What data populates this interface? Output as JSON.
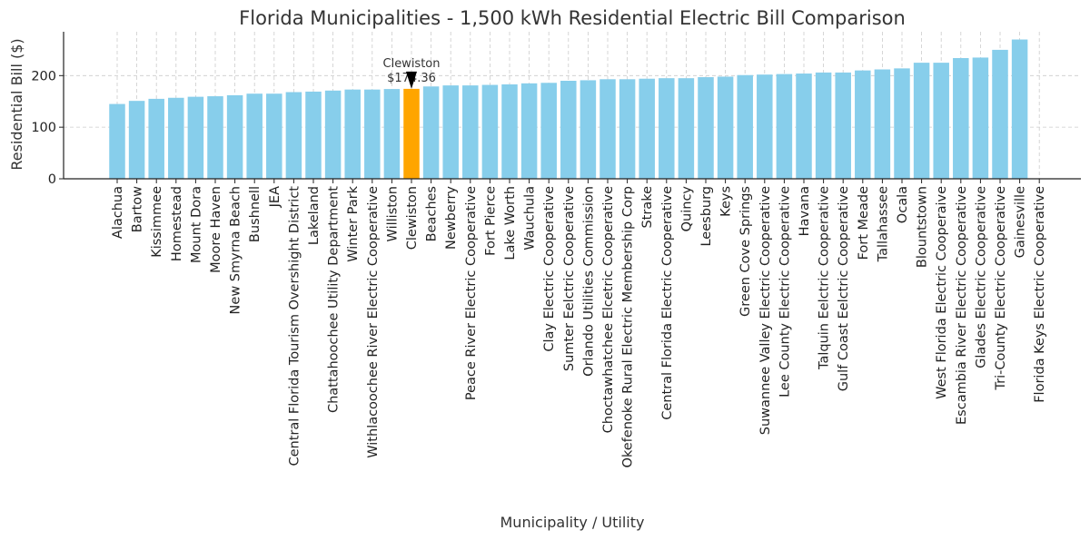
{
  "chart_data": {
    "type": "bar",
    "title": "Florida Municipalities - 1,500 kWh Residential Electric Bill Comparison",
    "xlabel": "Municipality / Utility",
    "ylabel": "Residential Bill ($)",
    "ylim": [
      0,
      285
    ],
    "yticks": [
      0,
      100,
      200
    ],
    "grid": true,
    "colors": {
      "default": "#87CEEB",
      "highlight": "#FFA500"
    },
    "highlight": "Clewiston",
    "annotation": {
      "target": "Clewiston",
      "line1": "Clewiston",
      "line2": "$174.36"
    },
    "categories": [
      "Alachua",
      "Bartow",
      "Kissimmee",
      "Homestead",
      "Mount Dora",
      "Moore Haven",
      "New Smyrna Beach",
      "Bushnell",
      "JEA",
      "Central Florida Tourism Overshight District",
      "Lakeland",
      "Chattahoochee Utility Department",
      "Winter Park",
      "Withlacoochee River Electric Cooperative",
      "Williston",
      "Clewiston",
      "Beaches",
      "Newberry",
      "Peace River Electric Cooperative",
      "Fort Pierce",
      "Lake Worth",
      "Wauchula",
      "Clay Electric Cooperative",
      "Sumter Eelctric Cooperative",
      "Orlando Utilities Commission",
      "Choctawhatchee Elcetric Cooperative",
      "Okefenoke Rural Electric Membership Corp",
      "Strake",
      "Central Florida Electric Cooperative",
      "Quincy",
      "Leesburg",
      "Keys",
      "Green Cove Springs",
      "Suwannee Valley Electric Cooperative",
      "Lee County Electric Cooperative",
      "Havana",
      "Talquin Eelctric Cooperative",
      "Gulf Coast Eelctric Cooperative",
      "Fort Meade",
      "Tallahassee",
      "Ocala",
      "Blountstown",
      "West Florida Electric Cooperaive",
      "Escambia River Electric Cooperative",
      "Glades Electric Cooperative",
      "Tri-County Electric Cooperative",
      "Gainesville",
      "Florida Keys Electric Cooperative"
    ],
    "values": [
      145,
      151,
      155,
      157,
      159,
      160,
      162,
      165,
      165,
      168,
      169,
      171,
      173,
      173,
      174,
      174.36,
      179,
      181,
      181,
      182,
      183,
      185,
      186,
      190,
      191,
      193,
      193,
      194,
      195,
      195,
      197,
      198,
      201,
      202,
      203,
      204,
      206,
      206,
      210,
      212,
      214,
      225,
      225,
      234,
      235,
      250,
      270,
      0
    ]
  }
}
